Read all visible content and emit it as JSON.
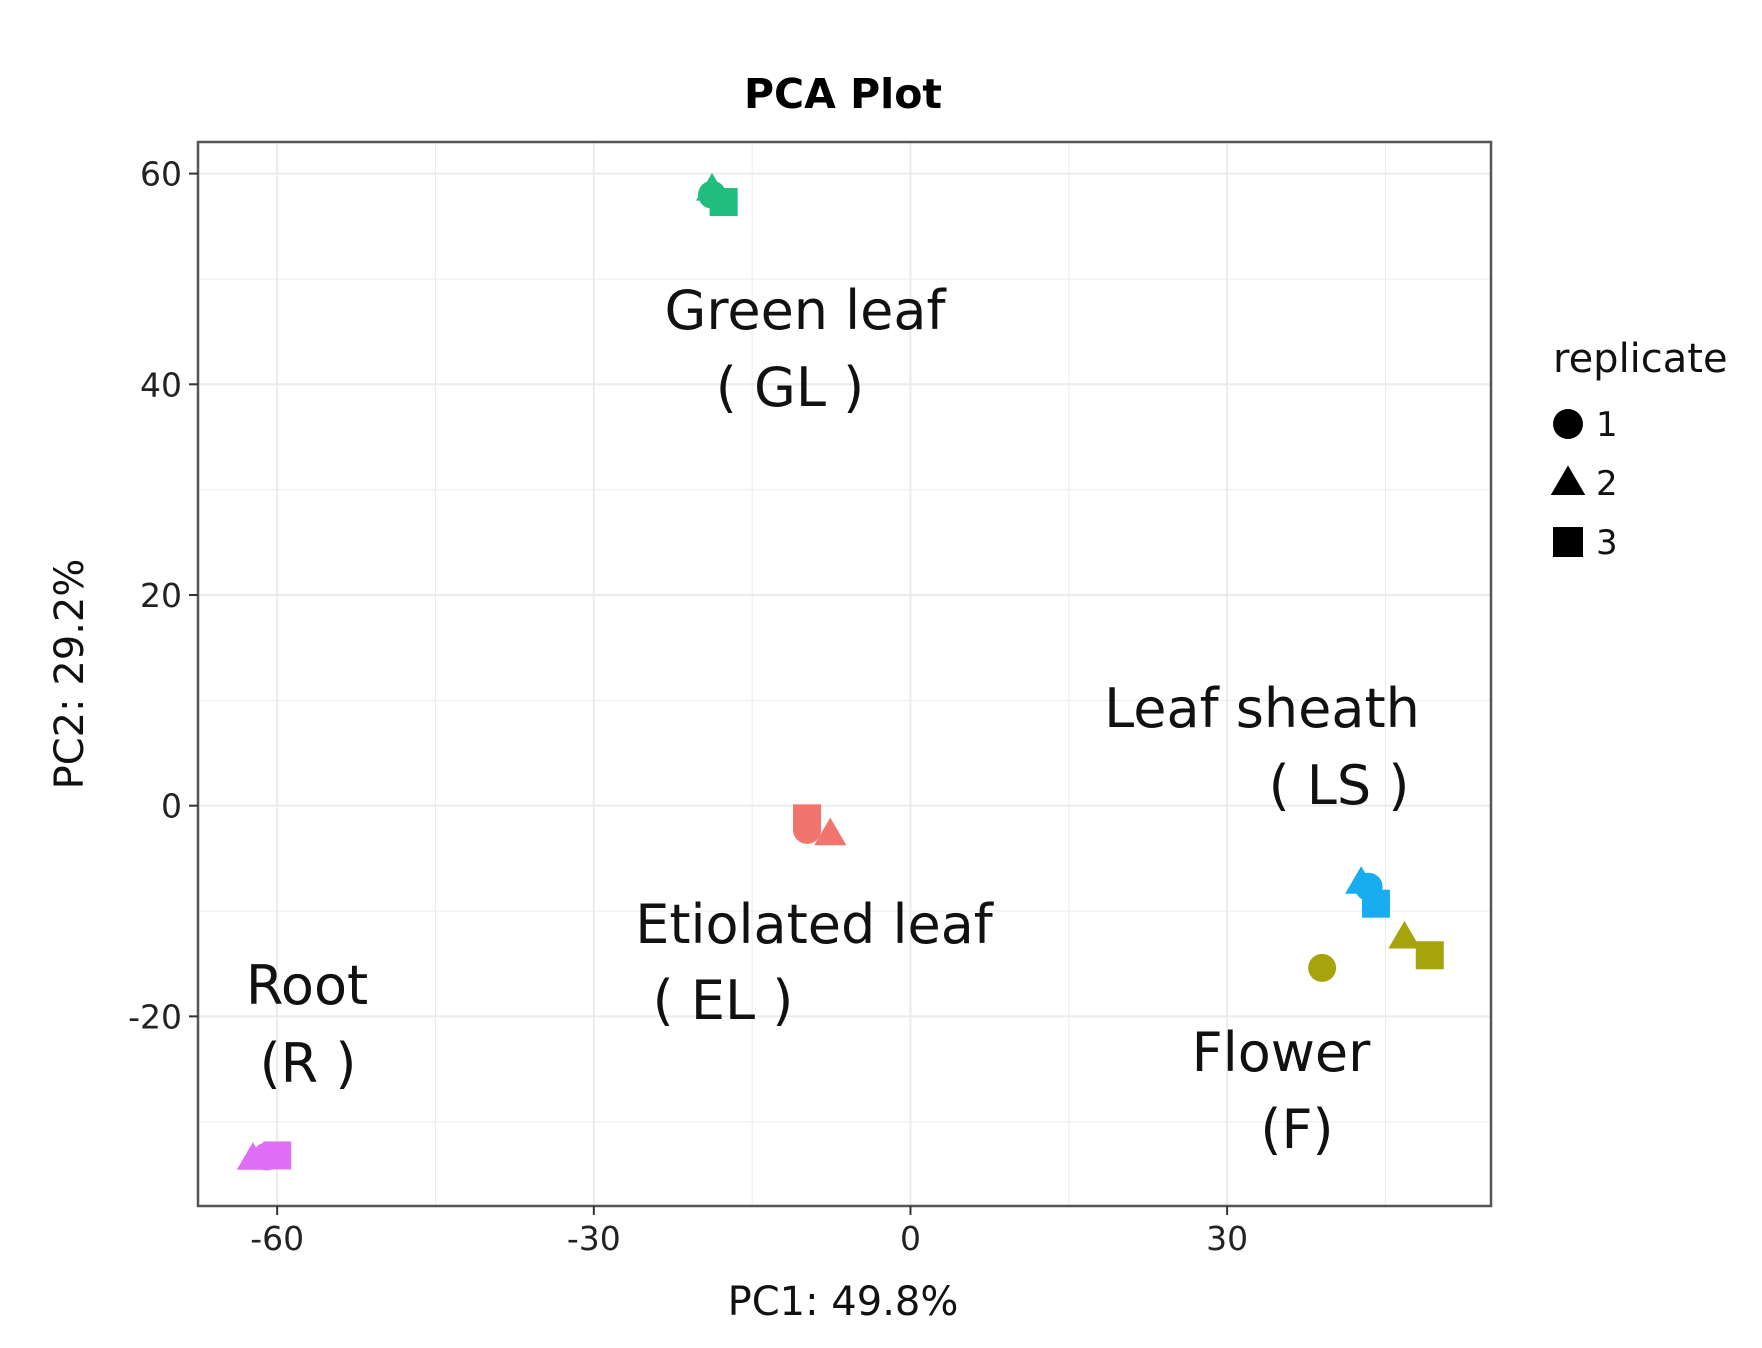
{
  "chart_data": {
    "type": "scatter",
    "title": "PCA Plot",
    "xlabel": "PC1: 49.8%",
    "ylabel": "PC2: 29.2%",
    "xlim": [
      -67.5,
      55
    ],
    "ylim": [
      -38,
      63
    ],
    "xticks": [
      -60,
      -30,
      0,
      30
    ],
    "xtick_labels": [
      "-60",
      "-30",
      "0",
      "30"
    ],
    "yticks": [
      -20,
      0,
      20,
      40,
      60
    ],
    "ytick_labels": [
      "-20",
      "0",
      "20",
      "40",
      "60"
    ],
    "grid": true,
    "legend": {
      "title": "replicate",
      "placement": "right",
      "entries": [
        {
          "label": "1",
          "shape": "circle"
        },
        {
          "label": "2",
          "shape": "triangle"
        },
        {
          "label": "3",
          "shape": "square"
        }
      ]
    },
    "series": [
      {
        "name": "Green leaf",
        "color": "#1fbd7e",
        "points": [
          {
            "x": -18.8,
            "y": 58,
            "replicate": "1"
          },
          {
            "x": -18.8,
            "y": 58.5,
            "replicate": "2"
          },
          {
            "x": -17.7,
            "y": 57.3,
            "replicate": "3"
          }
        ]
      },
      {
        "name": "Etiolated leaf",
        "color": "#f1746d",
        "points": [
          {
            "x": -9.8,
            "y": -2.3,
            "replicate": "1"
          },
          {
            "x": -7.6,
            "y": -2.7,
            "replicate": "2"
          },
          {
            "x": -9.8,
            "y": -1.2,
            "replicate": "3"
          }
        ]
      },
      {
        "name": "Root",
        "color": "#de6ef5",
        "points": [
          {
            "x": -61,
            "y": -33.3,
            "replicate": "1"
          },
          {
            "x": -62.3,
            "y": -33.5,
            "replicate": "2"
          },
          {
            "x": -60,
            "y": -33.2,
            "replicate": "3"
          }
        ]
      },
      {
        "name": "Leaf sheath",
        "color": "#17adee",
        "points": [
          {
            "x": 43.4,
            "y": -7.7,
            "replicate": "1"
          },
          {
            "x": 42.7,
            "y": -7.3,
            "replicate": "2"
          },
          {
            "x": 44.1,
            "y": -9.3,
            "replicate": "3"
          }
        ]
      },
      {
        "name": "Flower",
        "color": "#a7a30b",
        "points": [
          {
            "x": 39,
            "y": -15.4,
            "replicate": "1"
          },
          {
            "x": 46.8,
            "y": -12.5,
            "replicate": "2"
          },
          {
            "x": 49.2,
            "y": -14.2,
            "replicate": "3"
          }
        ]
      }
    ],
    "annotations": [
      {
        "id": "gl",
        "lines": [
          "Green leaf",
          "( GL )"
        ]
      },
      {
        "id": "el",
        "lines": [
          "Etiolated leaf",
          "( EL )"
        ]
      },
      {
        "id": "root",
        "lines": [
          "Root",
          "(R )"
        ]
      },
      {
        "id": "ls",
        "lines": [
          "Leaf sheath",
          "( LS )"
        ]
      },
      {
        "id": "flower",
        "lines": [
          "Flower",
          "(F)"
        ]
      }
    ]
  }
}
